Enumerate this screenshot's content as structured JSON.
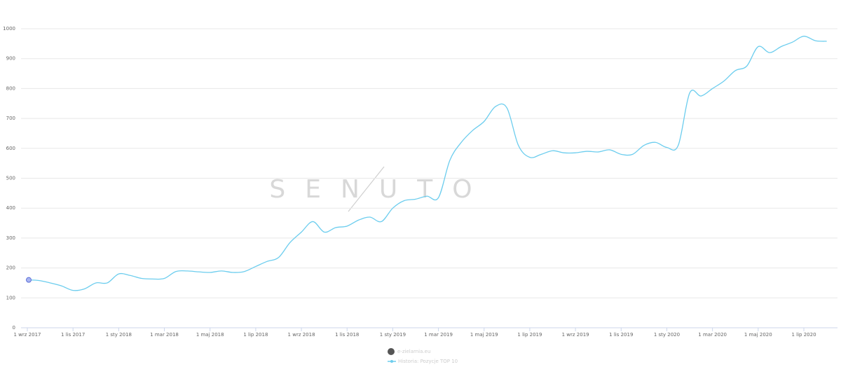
{
  "chart_data": {
    "type": "line",
    "watermark": "SENUTO",
    "categories": [
      "1 wrz 2017",
      null,
      null,
      null,
      "1 lis 2017",
      null,
      null,
      null,
      "1 sty 2018",
      null,
      null,
      null,
      "1 mar 2018",
      null,
      null,
      null,
      "1 maj 2018",
      null,
      null,
      null,
      "1 lip 2018",
      null,
      null,
      null,
      "1 wrz 2018",
      null,
      null,
      null,
      "1 lis 2018",
      null,
      null,
      null,
      "1 sty 2019",
      null,
      null,
      null,
      "1 mar 2019",
      null,
      null,
      null,
      "1 maj 2019",
      null,
      null,
      null,
      "1 lip 2019",
      null,
      null,
      null,
      "1 wrz 2019",
      null,
      null,
      null,
      "1 lis 2019",
      null,
      null,
      null,
      "1 sty 2020",
      null,
      null,
      null,
      "1 mar 2020",
      null,
      null,
      null,
      "1 maj 2020",
      null,
      null,
      null,
      "1 lip 2020",
      null,
      null
    ],
    "domain_label": "e-zielarnia.eu",
    "series": [
      {
        "name": "Historia: Pozycje TOP 10",
        "color": "#6ccdee",
        "values": [
          160,
          158,
          150,
          140,
          125,
          130,
          150,
          150,
          180,
          175,
          165,
          163,
          165,
          188,
          190,
          187,
          185,
          190,
          185,
          188,
          205,
          222,
          235,
          285,
          320,
          355,
          320,
          335,
          340,
          360,
          370,
          355,
          400,
          425,
          430,
          440,
          435,
          560,
          620,
          660,
          690,
          740,
          735,
          610,
          570,
          580,
          592,
          585,
          585,
          590,
          588,
          595,
          580,
          580,
          610,
          620,
          603,
          610,
          785,
          775,
          800,
          825,
          860,
          875,
          940,
          920,
          940,
          955,
          975,
          960,
          958
        ]
      }
    ],
    "ylim": [
      0,
      1000
    ],
    "yticks": [
      0,
      100,
      200,
      300,
      400,
      500,
      600,
      700,
      800,
      900,
      1000
    ],
    "grid": true
  }
}
